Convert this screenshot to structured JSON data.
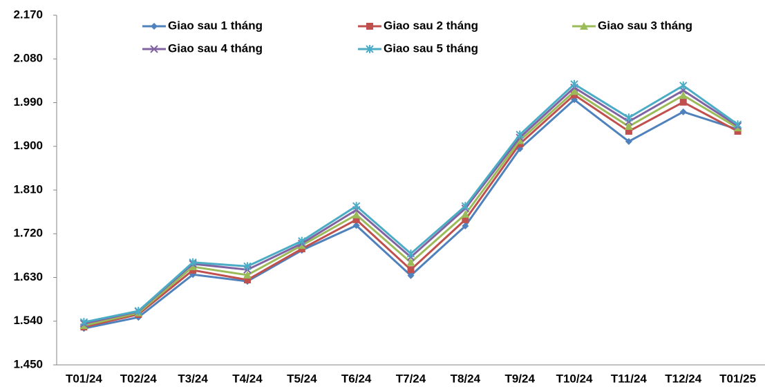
{
  "chart_data": {
    "type": "line",
    "categories": [
      "T01/24",
      "T02/24",
      "T3/24",
      "T4/24",
      "T5/24",
      "T6/24",
      "T7/24",
      "T8/24",
      "T9/24",
      "T10/24",
      "T11/24",
      "T12/24",
      "T01/25"
    ],
    "series": [
      {
        "name": "Giao sau 1 tháng",
        "color": "#4f81bd",
        "marker": "diamond",
        "values": [
          1525,
          1548,
          1636,
          1622,
          1686,
          1737,
          1634,
          1736,
          1895,
          1996,
          1910,
          1971,
          1935
        ]
      },
      {
        "name": "Giao sau 2 tháng",
        "color": "#c0504d",
        "marker": "square",
        "values": [
          1528,
          1554,
          1645,
          1625,
          1689,
          1749,
          1646,
          1749,
          1905,
          2006,
          1931,
          1991,
          1931
        ]
      },
      {
        "name": "Giao sau 3 tháng",
        "color": "#9bbb59",
        "marker": "triangle",
        "values": [
          1531,
          1557,
          1652,
          1635,
          1696,
          1759,
          1661,
          1760,
          1912,
          2013,
          1941,
          2005,
          1938
        ]
      },
      {
        "name": "Giao sau 4 tháng",
        "color": "#8064a2",
        "marker": "x",
        "values": [
          1535,
          1560,
          1658,
          1646,
          1700,
          1769,
          1672,
          1772,
          1918,
          2021,
          1951,
          2015,
          1942
        ]
      },
      {
        "name": "Giao sau 5 tháng",
        "color": "#4bacc6",
        "marker": "asterisk",
        "values": [
          1538,
          1561,
          1661,
          1653,
          1705,
          1777,
          1679,
          1777,
          1924,
          2028,
          1959,
          2025,
          1945
        ]
      }
    ],
    "ylim": [
      1450,
      2170
    ],
    "yticks": [
      {
        "value": 1450,
        "label": "1.450"
      },
      {
        "value": 1540,
        "label": "1.540"
      },
      {
        "value": 1630,
        "label": "1.630"
      },
      {
        "value": 1720,
        "label": "1.720"
      },
      {
        "value": 1810,
        "label": "1.810"
      },
      {
        "value": 1900,
        "label": "1.900"
      },
      {
        "value": 1990,
        "label": "1.990"
      },
      {
        "value": 2080,
        "label": "2.080"
      },
      {
        "value": 2170,
        "label": "2.170"
      }
    ],
    "grid": false,
    "legend": "top"
  }
}
